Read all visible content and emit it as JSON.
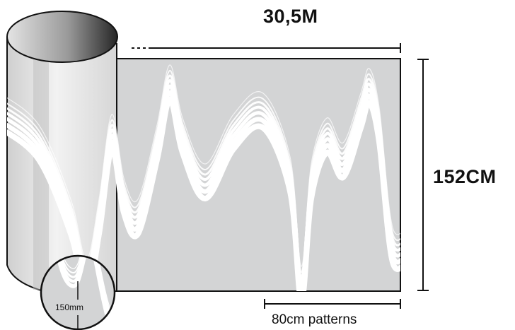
{
  "dimensions": {
    "roll_length": "30,5M",
    "roll_height": "152CM",
    "pattern_repeat": "80cm patterns",
    "detail_size": "150mm"
  },
  "colors": {
    "film": "#d3d4d5",
    "wave_lines": "#ffffff",
    "outline": "#111111",
    "roll_end_dark": "#2b2b2b",
    "roll_end_light": "#e2e2e2"
  },
  "icons": {
    "roll": "film-roll-icon",
    "magnifier": "magnifier-circle-icon"
  }
}
